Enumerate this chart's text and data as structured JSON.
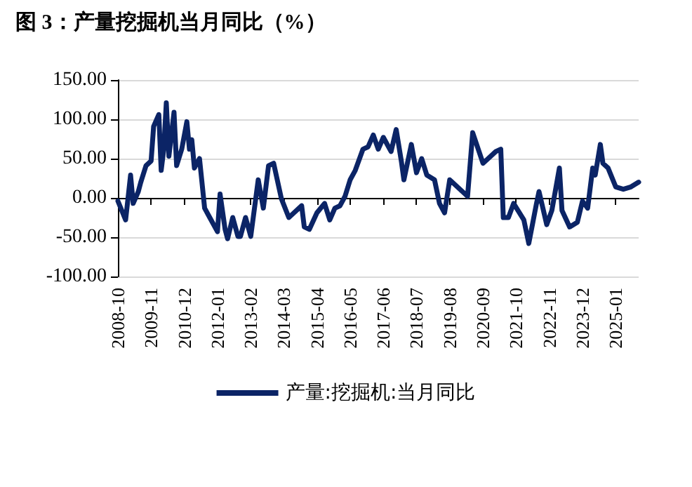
{
  "chart_data": {
    "type": "line",
    "title": "图 3：产量挖掘机当月同比（%）",
    "x": [
      "2008-10",
      "2009-01",
      "2009-03",
      "2009-04",
      "2009-06",
      "2009-07",
      "2009-09",
      "2009-11",
      "2009-12",
      "2010-02",
      "2010-03",
      "2010-04",
      "2010-05",
      "2010-06",
      "2010-08",
      "2010-09",
      "2010-11",
      "2011-01",
      "2011-02",
      "2011-03",
      "2011-04",
      "2011-06",
      "2011-08",
      "2011-10",
      "2012-01",
      "2012-02",
      "2012-04",
      "2012-05",
      "2012-07",
      "2012-09",
      "2012-10",
      "2012-12",
      "2013-02",
      "2013-05",
      "2013-07",
      "2013-09",
      "2013-11",
      "2014-02",
      "2014-05",
      "2014-07",
      "2014-10",
      "2014-11",
      "2015-01",
      "2015-04",
      "2015-07",
      "2015-09",
      "2015-11",
      "2016-01",
      "2016-03",
      "2016-05",
      "2016-07",
      "2016-10",
      "2016-12",
      "2017-02",
      "2017-04",
      "2017-06",
      "2017-09",
      "2017-11",
      "2018-01",
      "2018-02",
      "2018-05",
      "2018-07",
      "2018-09",
      "2018-11",
      "2019-02",
      "2019-04",
      "2019-06",
      "2019-08",
      "2020-03",
      "2020-05",
      "2020-09",
      "2021-02",
      "2021-04",
      "2021-05",
      "2021-07",
      "2021-09",
      "2022-01",
      "2022-03",
      "2022-06",
      "2022-07",
      "2022-10",
      "2022-12",
      "2023-03",
      "2023-04",
      "2023-07",
      "2023-10",
      "2023-12",
      "2024-02",
      "2024-04",
      "2024-05",
      "2024-07",
      "2024-08",
      "2024-10",
      "2025-01",
      "2025-04",
      "2025-07",
      "2025-10"
    ],
    "series": [
      {
        "name": "产量:挖掘机:当月同比",
        "color": "#0b2466",
        "values": [
          -4,
          -28,
          29,
          -7,
          8,
          20,
          41,
          47,
          91,
          106,
          35,
          62,
          121,
          53,
          109,
          41,
          62,
          97,
          62,
          74,
          38,
          50,
          -13,
          -25,
          -43,
          5,
          -40,
          -52,
          -25,
          -49,
          -49,
          -25,
          -49,
          23,
          -13,
          41,
          44,
          -1,
          -25,
          -19,
          -10,
          -37,
          -40,
          -19,
          -7,
          -28,
          -13,
          -10,
          2,
          23,
          35,
          62,
          65,
          80,
          62,
          77,
          59,
          87,
          47,
          23,
          68,
          32,
          50,
          29,
          23,
          -7,
          -19,
          23,
          2,
          83,
          44,
          59,
          62,
          -25,
          -25,
          -7,
          -28,
          -58,
          -7,
          8,
          -34,
          -16,
          38,
          -16,
          -37,
          -31,
          -4,
          -13,
          38,
          29,
          68,
          44,
          38,
          14,
          11,
          14,
          20
        ]
      }
    ],
    "xlim": [
      "2008-10",
      "2025-10"
    ],
    "xticks": [
      "2008-10",
      "2009-11",
      "2010-12",
      "2012-01",
      "2013-02",
      "2014-03",
      "2015-04",
      "2016-05",
      "2017-06",
      "2018-07",
      "2019-08",
      "2020-09",
      "2021-10",
      "2022-11",
      "2023-12",
      "2025-01"
    ],
    "ylim": [
      -100,
      150
    ],
    "yticks": [
      {
        "value": -100,
        "label": "-100.00"
      },
      {
        "value": -50,
        "label": "-50.00"
      },
      {
        "value": 0,
        "label": "0.00"
      },
      {
        "value": 50,
        "label": "50.00"
      },
      {
        "value": 100,
        "label": "100.00"
      },
      {
        "value": 150,
        "label": "150.00"
      }
    ],
    "grid": "y",
    "legend": "bottom",
    "marker": "none",
    "line_style": "solid"
  }
}
